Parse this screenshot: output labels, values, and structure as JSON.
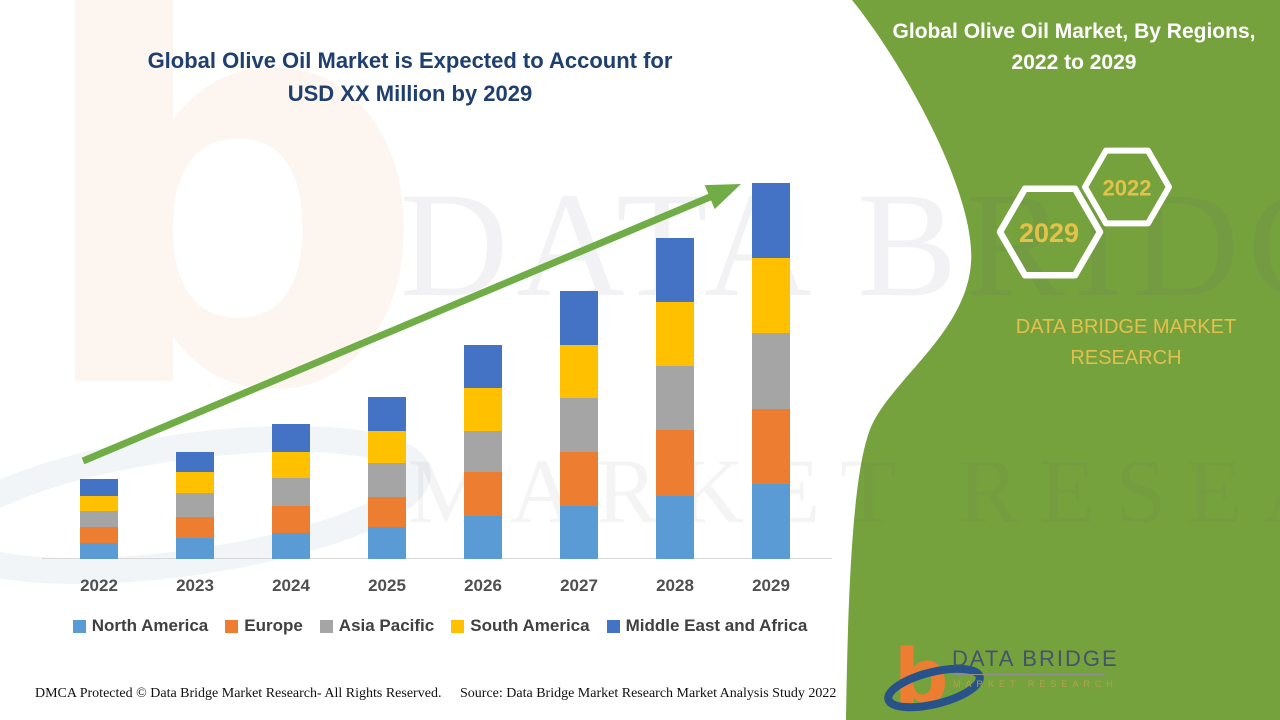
{
  "chart_panel": {
    "title_line1": "Global Olive Oil Market is Expected to Account for",
    "title_line2": "USD XX Million by 2029"
  },
  "chart_data": {
    "type": "bar",
    "stacked": true,
    "title": "Global Olive Oil Market is Expected to Account for USD XX Million by 2029",
    "categories": [
      "2022",
      "2023",
      "2024",
      "2025",
      "2026",
      "2027",
      "2028",
      "2029"
    ],
    "series": [
      {
        "name": "North America",
        "color": "#5b9bd5",
        "values": [
          16,
          21,
          26,
          32,
          43,
          53,
          63,
          75
        ]
      },
      {
        "name": "Europe",
        "color": "#ed7d31",
        "values": [
          16,
          21,
          27,
          30,
          44,
          54,
          66,
          75
        ]
      },
      {
        "name": "Asia Pacific",
        "color": "#a5a5a5",
        "values": [
          16,
          24,
          28,
          34,
          41,
          54,
          64,
          76
        ]
      },
      {
        "name": "South America",
        "color": "#ffc000",
        "values": [
          15,
          21,
          26,
          32,
          43,
          53,
          64,
          75
        ]
      },
      {
        "name": "Middle East and Africa",
        "color": "#4472c4",
        "values": [
          17,
          20,
          28,
          34,
          43,
          54,
          64,
          75
        ]
      }
    ],
    "totals": [
      80,
      107,
      135,
      162,
      214,
      268,
      321,
      376
    ],
    "xlabel": "",
    "ylabel": "",
    "value_axis_visible": false,
    "grid": false,
    "legend_position": "bottom",
    "trend_arrow": true,
    "note": "No numeric value axis shown (values denoted USD XX Million); series values are relative estimates of stacked segment heights"
  },
  "side_panel": {
    "bg_color": "#76a23e",
    "title_line1": "Global Olive Oil Market, By Regions,",
    "title_line2": "2022 to 2029",
    "hexagon_big_year": "2029",
    "hexagon_small_year": "2022",
    "brand_line1": "DATA BRIDGE MARKET",
    "brand_line2": "RESEARCH",
    "accent_text_color": "#e2c04c"
  },
  "logo": {
    "mark_glyph": "b",
    "brand": "DATA BRIDGE",
    "sub": "MARKET RESEARCH"
  },
  "watermark": {
    "line1": "DATA BRIDGE",
    "line2": "MARKET RESEARCH"
  },
  "footer": {
    "left": "DMCA Protected © Data Bridge Market Research- All Rights Reserved.",
    "right": "Source: Data Bridge Market Research Market Analysis Study 2022"
  },
  "colors": {
    "arrow_green": "#70ad47",
    "title_navy": "#1f3f6e",
    "axis_label_gray": "#4f4f4f",
    "legend_text": "#404040"
  }
}
